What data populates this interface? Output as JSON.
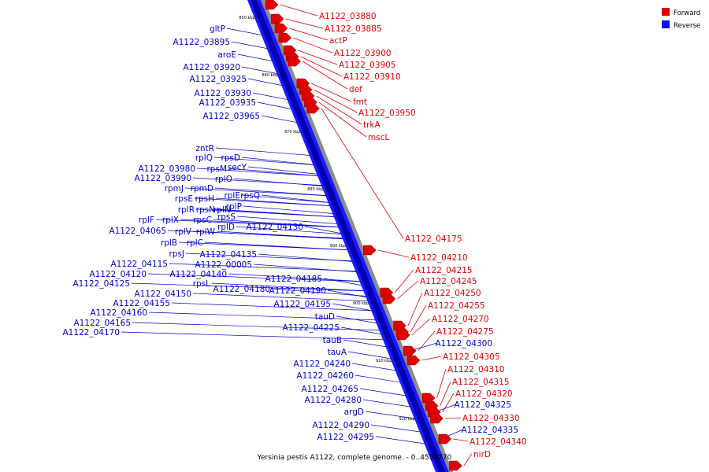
{
  "caption": "Yersinia pestis A1122, complete genome. - 0..4553770",
  "legend": [
    {
      "label": "Forward",
      "color": "#e00000"
    },
    {
      "label": "Reverse",
      "color": "#1010ee"
    }
  ],
  "ticks": [
    "850 kbp",
    "860 kbp",
    "870 kbp",
    "880 kbp",
    "890 kbp",
    "900 kbp",
    "910 kbp",
    "920 kbp"
  ],
  "forward_labels": [
    "A1122_03880",
    "A1122_03885",
    "actP",
    "A1122_03900",
    "A1122_03905",
    "A1122_03910",
    "def",
    "fmt",
    "A1122_03950",
    "trkA",
    "mscL",
    "A1122_04175",
    "A1122_04210",
    "A1122_04215",
    "A1122_04245",
    "A1122_04250",
    "A1122_04255",
    "A1122_04270",
    "A1122_04275",
    "A1122_04305",
    "A1122_04310",
    "A1122_04315",
    "A1122_04320",
    "A1122_04330",
    "A1122_04340",
    "nirD"
  ],
  "reverse_labels": [
    "gltP",
    "A1122_03895",
    "aroE",
    "A1122_03920",
    "A1122_03925",
    "A1122_03930",
    "A1122_03935",
    "A1122_03965",
    "zntR",
    "rplQ",
    "rpsD",
    "secY",
    "rpsM",
    "A1122_03980",
    "A1122_03990",
    "rplO",
    "rpmJ",
    "rpmD",
    "rplE",
    "rpsQ",
    "rpsE",
    "rplP",
    "rpsH",
    "rplR",
    "rpsN",
    "rplN",
    "rplF",
    "rplX",
    "rpsC",
    "rpsS",
    "rplV",
    "rplW",
    "A1122_04065",
    "rplD",
    "A1122_04130",
    "rplB",
    "rplC",
    "rpsJ",
    "A1122_04135",
    "A1122_04115",
    "A1122_00005",
    "A1122_04120",
    "A1122_04140",
    "A1122_04185",
    "A1122_04125",
    "rpsL",
    "A1122_04150",
    "A1122_04180",
    "A1122_04190",
    "A1122_04155",
    "A1122_04195",
    "A1122_04160",
    "tauD",
    "A1122_04165",
    "A1122_04225",
    "A1122_04170",
    "tauB",
    "tauA",
    "A1122_04300",
    "A1122_04240",
    "A1122_04260",
    "A1122_04265",
    "A1122_04280",
    "argD",
    "A1122_04325",
    "A1122_04290",
    "A1122_04335",
    "A1122_04295"
  ]
}
